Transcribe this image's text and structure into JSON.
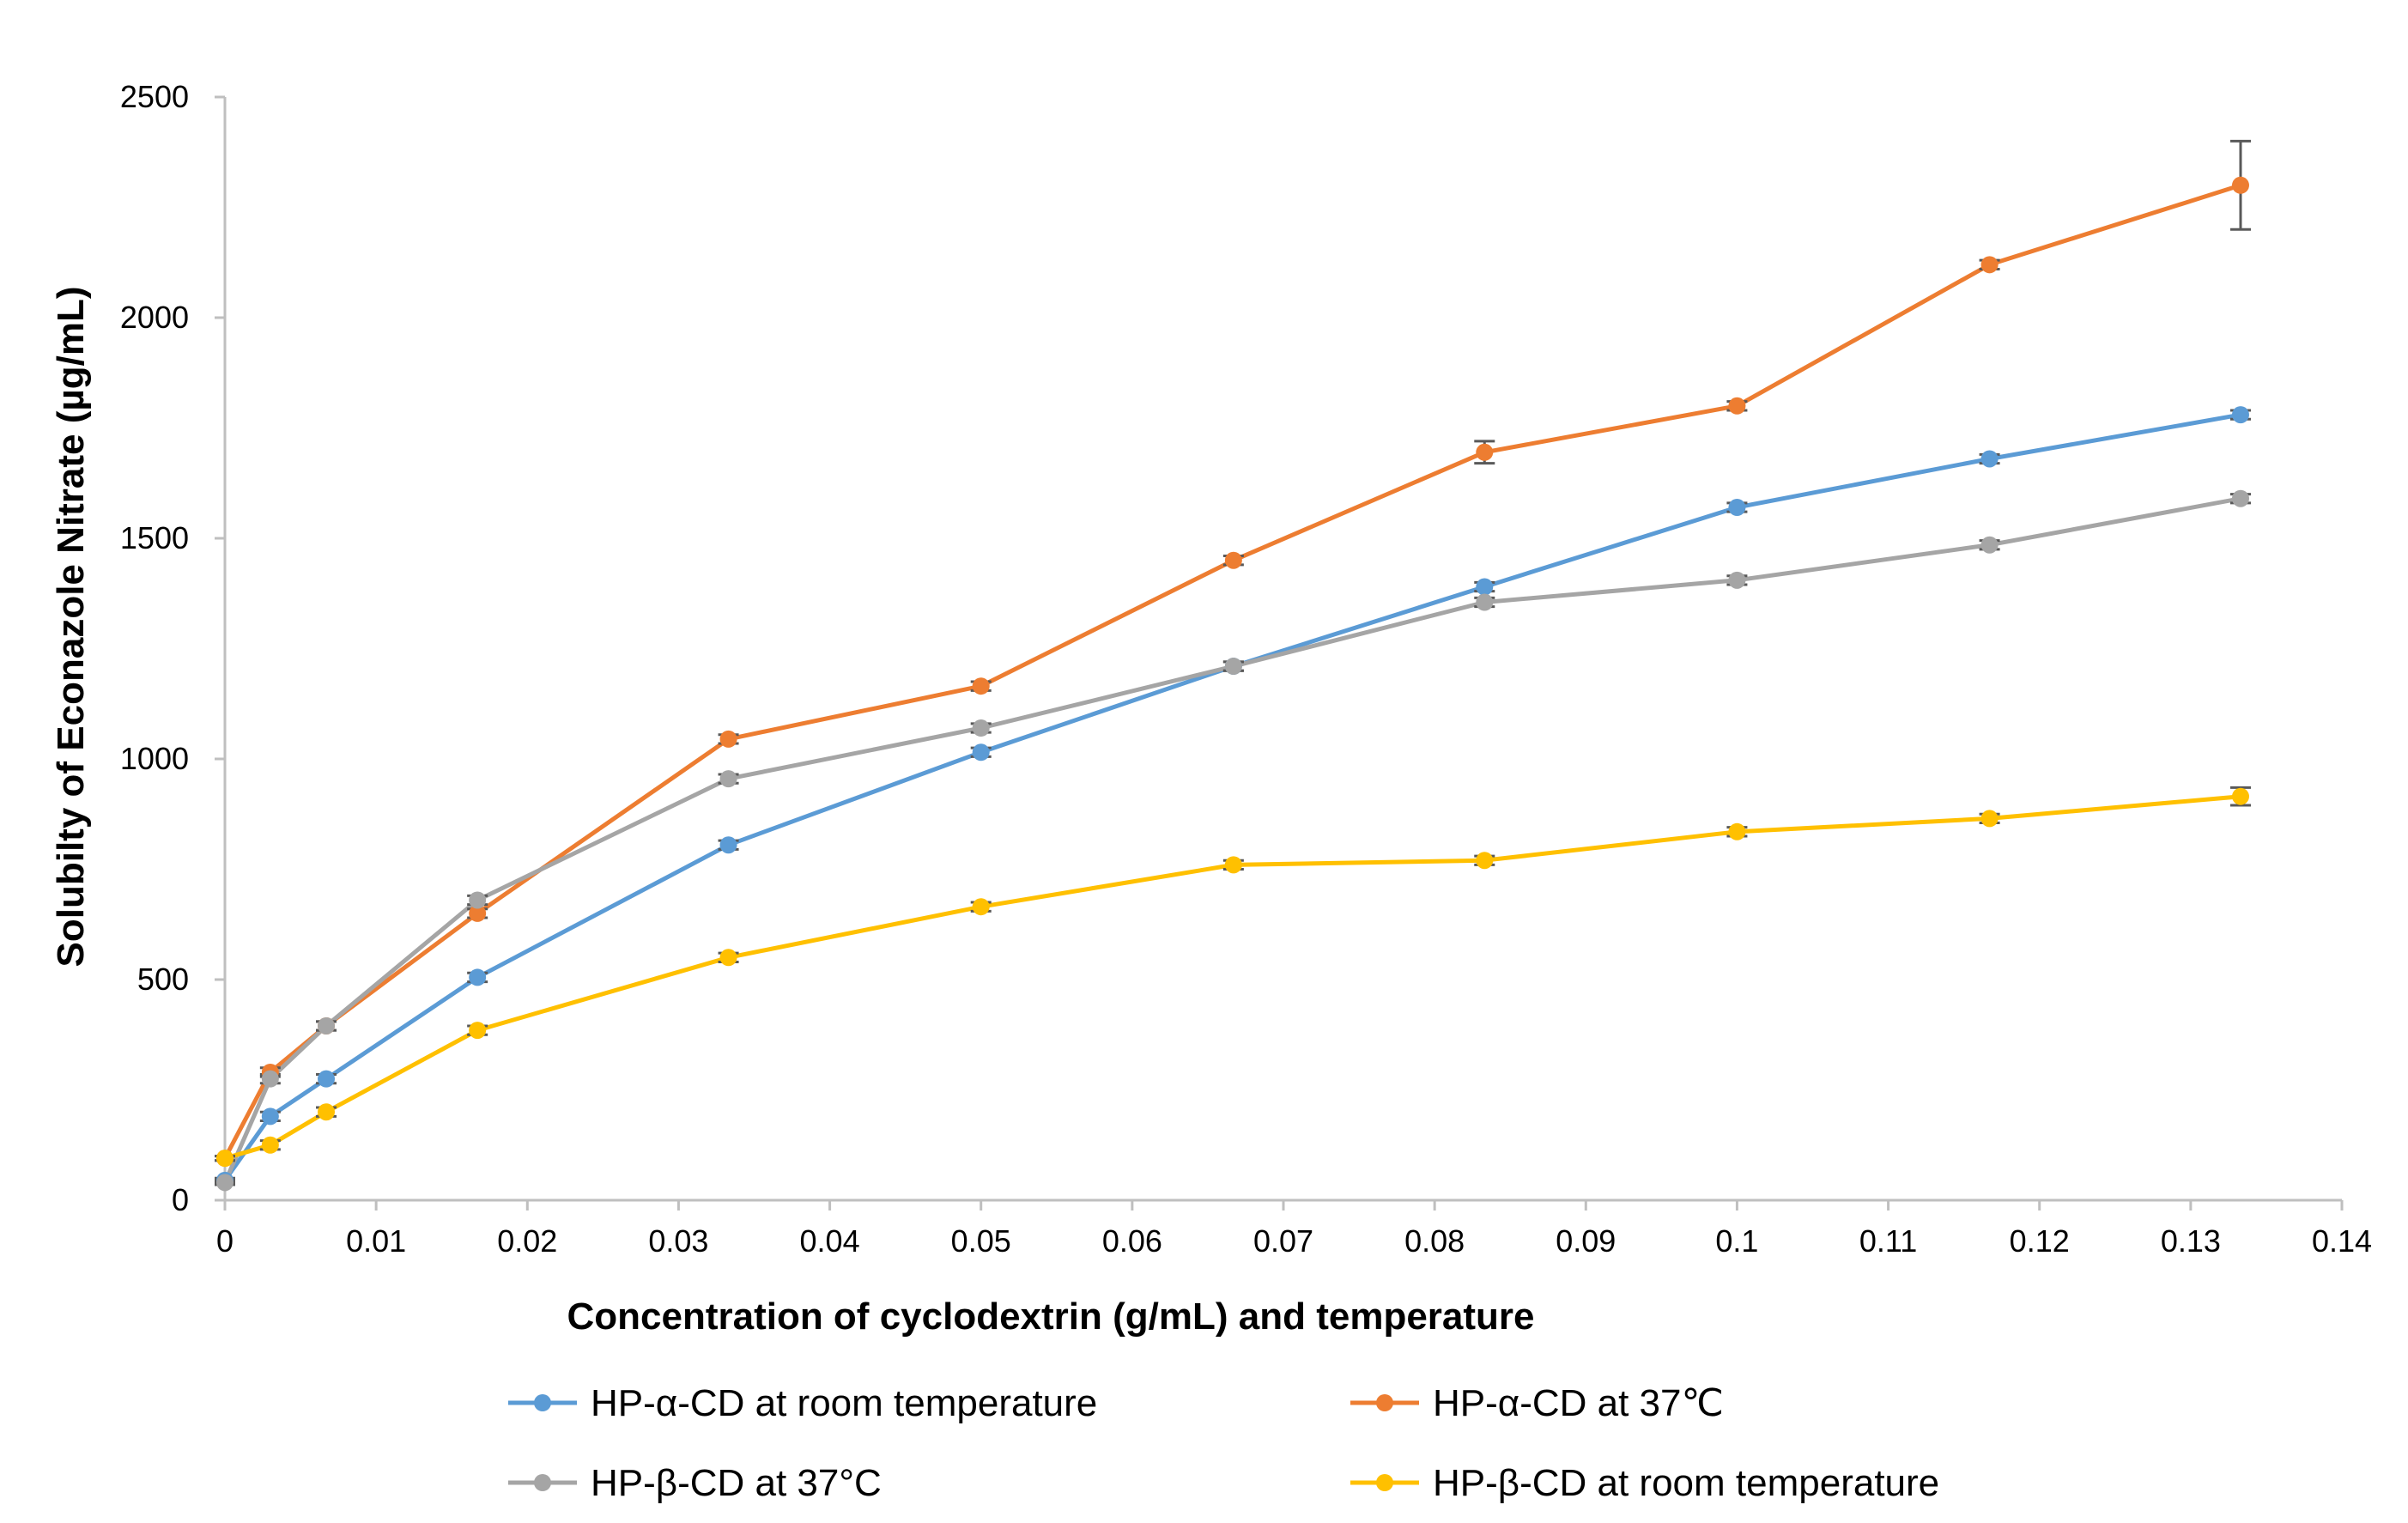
{
  "chart_data": {
    "type": "line",
    "xlabel": "Concentration of cyclodextrin (g/mL) and temperature",
    "ylabel": "Solubilty of Econazole Nitrate (µg/mL)",
    "xlim": [
      0,
      0.14
    ],
    "ylim": [
      0,
      2500
    ],
    "xticks": [
      0,
      0.01,
      0.02,
      0.03,
      0.04,
      0.05,
      0.06,
      0.07,
      0.08,
      0.09,
      0.1,
      0.11,
      0.12,
      0.13,
      0.14
    ],
    "xtick_labels": [
      "0",
      "0.01",
      "0.02",
      "0.03",
      "0.04",
      "0.05",
      "0.06",
      "0.07",
      "0.08",
      "0.09",
      "0.1",
      "0.11",
      "0.12",
      "0.13",
      "0.14"
    ],
    "yticks": [
      0,
      500,
      1000,
      1500,
      2000,
      2500
    ],
    "ytick_labels": [
      "0",
      "500",
      "1000",
      "1500",
      "2000",
      "2500"
    ],
    "grid": false,
    "legend_position": "bottom",
    "x": [
      0,
      0.003,
      0.0067,
      0.0167,
      0.0333,
      0.05,
      0.0667,
      0.0833,
      0.1,
      0.1167,
      0.1333
    ],
    "series": [
      {
        "name": "HP-α-CD at room temperature",
        "color": "#5B9BD5",
        "values": [
          45,
          190,
          275,
          505,
          805,
          1015,
          1210,
          1390,
          1570,
          1680,
          1780
        ],
        "errors": [
          5,
          10,
          10,
          10,
          10,
          10,
          10,
          10,
          10,
          10,
          10
        ]
      },
      {
        "name": "HP-α-CD at 37℃",
        "color": "#ED7D31",
        "values": [
          95,
          290,
          395,
          650,
          1045,
          1165,
          1450,
          1695,
          1800,
          2120,
          2300
        ],
        "errors": [
          5,
          10,
          10,
          10,
          10,
          10,
          10,
          25,
          10,
          10,
          100
        ]
      },
      {
        "name": "HP-β-CD at 37°C",
        "color": "#A5A5A5",
        "values": [
          40,
          275,
          395,
          680,
          955,
          1070,
          1210,
          1355,
          1405,
          1485,
          1590
        ],
        "errors": [
          5,
          10,
          10,
          10,
          10,
          10,
          10,
          10,
          10,
          10,
          10
        ]
      },
      {
        "name": "HP-β-CD at room temperature",
        "color": "#FFC000",
        "values": [
          95,
          125,
          200,
          385,
          550,
          665,
          760,
          770,
          835,
          865,
          915
        ],
        "errors": [
          5,
          10,
          10,
          10,
          10,
          10,
          10,
          10,
          10,
          10,
          20
        ]
      }
    ],
    "axis_color": "#BFBFBF",
    "errorbar_color": "#595959"
  }
}
